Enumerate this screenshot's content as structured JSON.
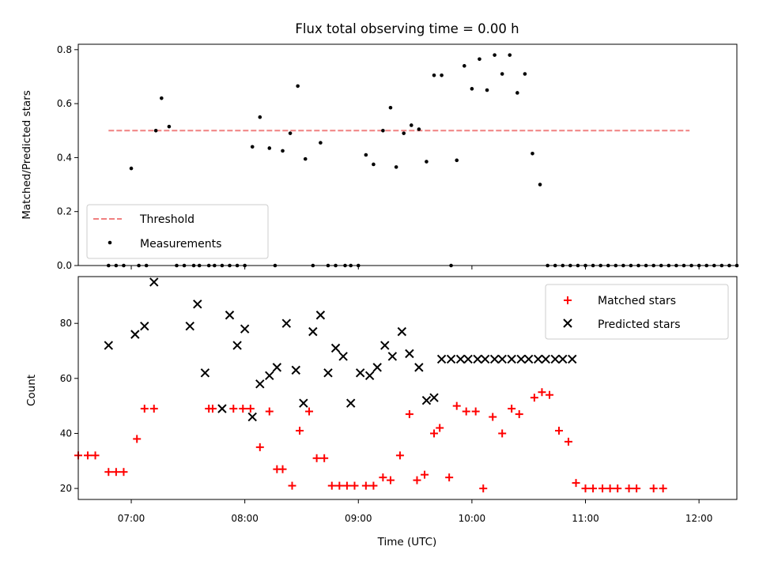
{
  "chart_data": [
    {
      "type": "scatter",
      "title": "Flux total observing time = 0.00 h",
      "ylabel": "Matched/Predicted stars",
      "xlabel": "",
      "ylim": [
        0,
        0.82
      ],
      "xlim": [
        "06:32",
        "12:20"
      ],
      "yticks": [
        "0.0",
        "0.2",
        "0.4",
        "0.6",
        "0.8"
      ],
      "legend": {
        "placement": "lower-left",
        "entries": [
          "Threshold",
          "Measurements"
        ]
      },
      "threshold": {
        "name": "Threshold",
        "value": 0.5,
        "x_start": "06:48",
        "x_end": "11:55",
        "color": "#f08080"
      },
      "series": [
        {
          "name": "Measurements",
          "color": "#000000",
          "x": [
            "06:48",
            "06:52",
            "06:56",
            "07:00",
            "07:04",
            "07:08",
            "07:13",
            "07:16",
            "07:20",
            "07:24",
            "07:28",
            "07:33",
            "07:36",
            "07:41",
            "07:44",
            "07:48",
            "07:52",
            "07:56",
            "08:00",
            "08:04",
            "08:08",
            "08:13",
            "08:16",
            "08:20",
            "08:24",
            "08:28",
            "08:32",
            "08:36",
            "08:40",
            "08:44",
            "08:48",
            "08:53",
            "08:56",
            "09:00",
            "09:04",
            "09:08",
            "09:13",
            "09:17",
            "09:20",
            "09:24",
            "09:28",
            "09:32",
            "09:36",
            "09:40",
            "09:44",
            "09:49",
            "09:52",
            "09:56",
            "10:00",
            "10:04",
            "10:08",
            "10:12",
            "10:16",
            "10:20",
            "10:24",
            "10:28",
            "10:32",
            "10:36",
            "10:40",
            "10:44",
            "10:48",
            "10:52",
            "10:56",
            "11:00",
            "11:04",
            "11:08",
            "11:12",
            "11:16",
            "11:20",
            "11:24",
            "11:28",
            "11:32",
            "11:36",
            "11:40",
            "11:44",
            "11:48",
            "11:52",
            "11:56",
            "12:00",
            "12:04",
            "12:08",
            "12:12",
            "12:16",
            "12:20",
            "12:24",
            "12:28",
            "12:32",
            "12:36"
          ],
          "y": [
            0,
            0,
            0,
            0.36,
            0,
            0,
            0.5,
            0.62,
            0.515,
            0,
            0,
            0,
            0,
            0,
            0,
            0,
            0,
            0,
            0,
            0.44,
            0.55,
            0.435,
            0,
            0.425,
            0.49,
            0.665,
            0.395,
            0,
            0.455,
            0,
            0,
            0,
            0,
            0,
            0.41,
            0.375,
            0.5,
            0.585,
            0.365,
            0.49,
            0.52,
            0.505,
            0.385,
            0.705,
            0.705,
            0,
            0.39,
            0.74,
            0.655,
            0.765,
            0.65,
            0.78,
            0.71,
            0.78,
            0.64,
            0.71,
            0.415,
            0.3,
            0,
            0,
            0,
            0,
            0,
            0,
            0,
            0,
            0,
            0,
            0,
            0,
            0,
            0,
            0,
            0,
            0,
            0,
            0,
            0,
            0,
            0,
            0,
            0,
            0,
            0,
            0,
            0,
            0,
            0
          ]
        }
      ]
    },
    {
      "type": "scatter",
      "title": "",
      "xlabel": "Time (UTC)",
      "ylabel": "Count",
      "ylim": [
        16,
        97
      ],
      "xlim": [
        "06:32",
        "12:20"
      ],
      "xticks": [
        "07:00",
        "08:00",
        "09:00",
        "10:00",
        "11:00",
        "12:00"
      ],
      "yticks": [
        "20",
        "40",
        "60",
        "80"
      ],
      "legend": {
        "placement": "top-right",
        "entries": [
          "Matched stars",
          "Predicted stars"
        ]
      },
      "series": [
        {
          "name": "Matched stars",
          "color": "#ff0000",
          "marker": "plus",
          "x": [
            "06:32",
            "06:37",
            "06:41",
            "06:48",
            "06:52",
            "06:56",
            "07:03",
            "07:07",
            "07:12",
            "07:41",
            "07:43",
            "07:54",
            "07:59",
            "08:03",
            "08:08",
            "08:13",
            "08:17",
            "08:20",
            "08:25",
            "08:29",
            "08:34",
            "08:38",
            "08:42",
            "08:46",
            "08:50",
            "08:54",
            "08:58",
            "09:04",
            "09:08",
            "09:13",
            "09:17",
            "09:22",
            "09:27",
            "09:31",
            "09:35",
            "09:40",
            "09:43",
            "09:48",
            "09:52",
            "09:57",
            "10:02",
            "10:06",
            "10:11",
            "10:16",
            "10:21",
            "10:25",
            "10:33",
            "10:37",
            "10:41",
            "10:46",
            "10:51",
            "10:55",
            "11:00",
            "11:04",
            "11:09",
            "11:13",
            "11:17",
            "11:23",
            "11:27",
            "11:36",
            "11:41"
          ],
          "y": [
            32,
            32,
            32,
            26,
            26,
            26,
            38,
            49,
            49,
            49,
            49,
            49,
            49,
            49,
            35,
            48,
            27,
            27,
            21,
            41,
            48,
            31,
            31,
            21,
            21,
            21,
            21,
            21,
            21,
            24,
            23,
            32,
            47,
            23,
            25,
            40,
            42,
            24,
            50,
            48,
            48,
            20,
            46,
            40,
            49,
            47,
            53,
            55,
            54,
            41,
            37,
            22,
            20,
            20,
            20,
            20,
            20,
            20,
            20,
            20,
            20
          ]
        },
        {
          "name": "Predicted stars",
          "color": "#000000",
          "marker": "x",
          "x": [
            "06:48",
            "07:02",
            "07:07",
            "07:12",
            "07:31",
            "07:35",
            "07:39",
            "07:48",
            "07:52",
            "07:56",
            "08:00",
            "08:04",
            "08:08",
            "08:13",
            "08:17",
            "08:22",
            "08:27",
            "08:31",
            "08:36",
            "08:40",
            "08:44",
            "08:48",
            "08:52",
            "08:56",
            "09:01",
            "09:06",
            "09:10",
            "09:14",
            "09:18",
            "09:23",
            "09:27",
            "09:32",
            "09:36",
            "09:40",
            "09:44",
            "09:49",
            "09:54",
            "09:58",
            "10:03",
            "10:07",
            "10:12",
            "10:16",
            "10:21",
            "10:26",
            "10:30",
            "10:35",
            "10:39",
            "10:44",
            "10:48",
            "10:53"
          ],
          "y": [
            72,
            76,
            79,
            95,
            79,
            87,
            62,
            49,
            83,
            72,
            78,
            46,
            58,
            61,
            64,
            80,
            63,
            51,
            77,
            83,
            62,
            71,
            68,
            51,
            62,
            61,
            64,
            72,
            68,
            77,
            69,
            64,
            52,
            53,
            67,
            67,
            67,
            67,
            67,
            67,
            67,
            67,
            67,
            67,
            67,
            67,
            67,
            67,
            67,
            67
          ]
        }
      ]
    }
  ]
}
